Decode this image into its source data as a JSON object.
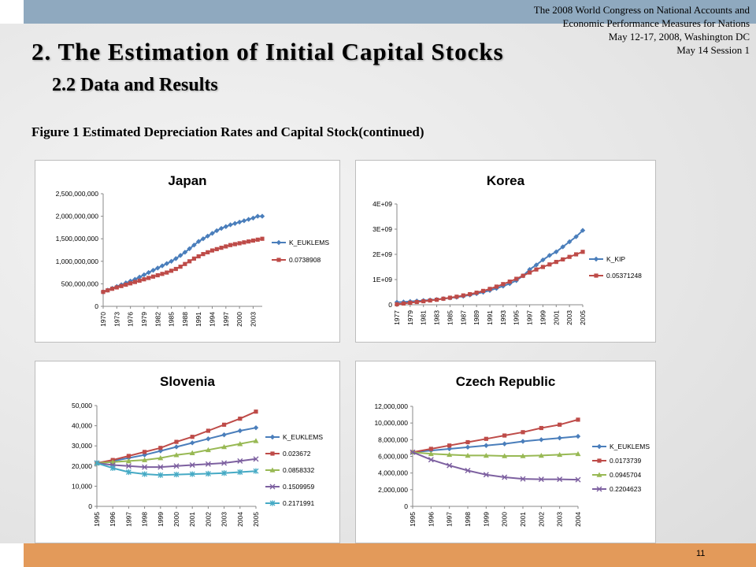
{
  "header": {
    "conference_lines": [
      "The 2008 World Congress on National Accounts and",
      "Economic Performance Measures for Nations",
      "May 12-17, 2008, Washington DC",
      "May 14 Session 1"
    ]
  },
  "title": "2. The Estimation of Initial Capital Stocks",
  "subtitle": "2.2 Data and Results",
  "figure_caption": "Figure 1 Estimated Depreciation Rates and Capital Stock(continued)",
  "page_number": "11",
  "colors": {
    "blue": "#4a7ebb",
    "red": "#be4b48",
    "green": "#98b954",
    "purple": "#7d60a0",
    "cyan": "#46aac5",
    "top_bar": "#8fa9bf",
    "bottom_bar": "#e39a5a"
  },
  "chart_data": [
    {
      "type": "line",
      "title": "Japan",
      "x": [
        1970,
        1971,
        1972,
        1973,
        1974,
        1975,
        1976,
        1977,
        1978,
        1979,
        1980,
        1981,
        1982,
        1983,
        1984,
        1985,
        1986,
        1987,
        1988,
        1989,
        1990,
        1991,
        1992,
        1993,
        1994,
        1995,
        1996,
        1997,
        1998,
        1999,
        2000,
        2001,
        2002,
        2003,
        2004,
        2005
      ],
      "x_tick_labels": [
        "1970",
        "1973",
        "1976",
        "1979",
        "1982",
        "1985",
        "1988",
        "1991",
        "1994",
        "1997",
        "2000",
        "2003"
      ],
      "ylim": [
        0,
        2500000000
      ],
      "y_ticks": [
        0,
        500000000,
        1000000000,
        1500000000,
        2000000000,
        2500000000
      ],
      "y_tick_labels": [
        "0",
        "500,000,000",
        "1,000,000,000",
        "1,500,000,000",
        "2,000,000,000",
        "2,500,000,000"
      ],
      "legend_position": "right",
      "series": [
        {
          "name": "K_EUKLEMS",
          "color": "blue",
          "marker": "diamond",
          "values": [
            320000000,
            360000000,
            400000000,
            440000000,
            480000000,
            520000000,
            560000000,
            600000000,
            650000000,
            700000000,
            750000000,
            800000000,
            850000000,
            900000000,
            950000000,
            1000000000,
            1060000000,
            1130000000,
            1200000000,
            1280000000,
            1360000000,
            1440000000,
            1500000000,
            1560000000,
            1620000000,
            1680000000,
            1730000000,
            1770000000,
            1810000000,
            1840000000,
            1870000000,
            1900000000,
            1930000000,
            1960000000,
            2000000000,
            2000000000
          ]
        },
        {
          "name": "0.0738908",
          "color": "red",
          "marker": "square",
          "values": [
            320000000,
            355000000,
            390000000,
            420000000,
            450000000,
            480000000,
            510000000,
            540000000,
            570000000,
            600000000,
            630000000,
            660000000,
            690000000,
            720000000,
            750000000,
            790000000,
            830000000,
            880000000,
            940000000,
            1000000000,
            1060000000,
            1110000000,
            1160000000,
            1200000000,
            1240000000,
            1270000000,
            1300000000,
            1330000000,
            1360000000,
            1380000000,
            1400000000,
            1420000000,
            1440000000,
            1460000000,
            1480000000,
            1500000000
          ]
        }
      ]
    },
    {
      "type": "line",
      "title": "Korea",
      "x": [
        1977,
        1978,
        1979,
        1980,
        1981,
        1982,
        1983,
        1984,
        1985,
        1986,
        1987,
        1988,
        1989,
        1990,
        1991,
        1992,
        1993,
        1994,
        1995,
        1996,
        1997,
        1998,
        1999,
        2000,
        2001,
        2002,
        2003,
        2004,
        2005
      ],
      "x_tick_labels": [
        "1977",
        "1979",
        "1981",
        "1983",
        "1985",
        "1987",
        "1989",
        "1991",
        "1993",
        "1995",
        "1997",
        "1999",
        "2001",
        "2003",
        "2005"
      ],
      "ylim": [
        0,
        4000000000
      ],
      "y_ticks": [
        0,
        1000000000,
        2000000000,
        3000000000,
        4000000000
      ],
      "y_tick_labels": [
        "0",
        "1E+09",
        "2E+09",
        "3E+09",
        "4E+09"
      ],
      "legend_position": "right",
      "series": [
        {
          "name": "K_KIP",
          "color": "blue",
          "marker": "diamond",
          "values": [
            100000000,
            110000000,
            130000000,
            150000000,
            170000000,
            190000000,
            210000000,
            240000000,
            270000000,
            300000000,
            340000000,
            390000000,
            440000000,
            500000000,
            570000000,
            650000000,
            740000000,
            840000000,
            960000000,
            1150000000,
            1400000000,
            1580000000,
            1780000000,
            1960000000,
            2100000000,
            2300000000,
            2500000000,
            2700000000,
            2950000000
          ]
        },
        {
          "name": "0.05371248",
          "color": "red",
          "marker": "square",
          "values": [
            20000000,
            50000000,
            80000000,
            110000000,
            140000000,
            170000000,
            200000000,
            240000000,
            280000000,
            320000000,
            370000000,
            420000000,
            480000000,
            550000000,
            630000000,
            720000000,
            820000000,
            920000000,
            1030000000,
            1150000000,
            1280000000,
            1400000000,
            1500000000,
            1600000000,
            1700000000,
            1800000000,
            1900000000,
            2000000000,
            2100000000
          ]
        }
      ]
    },
    {
      "type": "line",
      "title": "Slovenia",
      "x": [
        1995,
        1996,
        1997,
        1998,
        1999,
        2000,
        2001,
        2002,
        2003,
        2004,
        2005
      ],
      "x_tick_labels": [
        "1995",
        "1996",
        "1997",
        "1998",
        "1999",
        "2000",
        "2001",
        "2002",
        "2003",
        "2004",
        "2005"
      ],
      "ylim": [
        0,
        50000
      ],
      "y_ticks": [
        0,
        10000,
        20000,
        30000,
        40000,
        50000
      ],
      "y_tick_labels": [
        "0",
        "10,000",
        "20,000",
        "30,000",
        "40,000",
        "50,000"
      ],
      "legend_position": "right",
      "series": [
        {
          "name": "K_EUKLEMS",
          "color": "blue",
          "marker": "diamond",
          "values": [
            21500,
            22500,
            24000,
            25500,
            27500,
            29500,
            31500,
            33500,
            35500,
            37500,
            39000
          ]
        },
        {
          "name": "0.023672",
          "color": "red",
          "marker": "square",
          "values": [
            21500,
            23000,
            25000,
            27000,
            29000,
            32000,
            34500,
            37500,
            40500,
            43500,
            47000
          ]
        },
        {
          "name": "0.0858332",
          "color": "green",
          "marker": "triangle",
          "values": [
            21500,
            22000,
            22500,
            23000,
            24000,
            25500,
            26500,
            28000,
            29500,
            31000,
            32500
          ]
        },
        {
          "name": "0.1509959",
          "color": "purple",
          "marker": "x",
          "values": [
            21500,
            20500,
            20000,
            19500,
            19500,
            20000,
            20500,
            21000,
            21500,
            22500,
            23500
          ]
        },
        {
          "name": "0.2171991",
          "color": "cyan",
          "marker": "star",
          "values": [
            21500,
            19000,
            17000,
            16000,
            15500,
            15800,
            16000,
            16200,
            16500,
            17000,
            17500
          ]
        }
      ]
    },
    {
      "type": "line",
      "title": "Czech Republic",
      "x": [
        1995,
        1996,
        1997,
        1998,
        1999,
        2000,
        2001,
        2002,
        2003,
        2004
      ],
      "x_tick_labels": [
        "1995",
        "1996",
        "1997",
        "1998",
        "1999",
        "2000",
        "2001",
        "2002",
        "2003",
        "2004"
      ],
      "ylim": [
        0,
        12000000
      ],
      "y_ticks": [
        0,
        2000000,
        4000000,
        6000000,
        8000000,
        10000000,
        12000000
      ],
      "y_tick_labels": [
        "0",
        "2,000,000",
        "4,000,000",
        "6,000,000",
        "8,000,000",
        "10,000,000",
        "12,000,000"
      ],
      "legend_position": "right",
      "series": [
        {
          "name": "K_EUKLEMS",
          "color": "blue",
          "marker": "diamond",
          "values": [
            6500000,
            6700000,
            6900000,
            7100000,
            7300000,
            7500000,
            7800000,
            8000000,
            8200000,
            8400000
          ]
        },
        {
          "name": "0.0173739",
          "color": "red",
          "marker": "square",
          "values": [
            6500000,
            6900000,
            7300000,
            7700000,
            8100000,
            8500000,
            8900000,
            9400000,
            9800000,
            10400000
          ]
        },
        {
          "name": "0.0945704",
          "color": "green",
          "marker": "triangle",
          "values": [
            6500000,
            6300000,
            6200000,
            6100000,
            6100000,
            6050000,
            6050000,
            6100000,
            6200000,
            6300000
          ]
        },
        {
          "name": "0.2204623",
          "color": "purple",
          "marker": "x",
          "values": [
            6500000,
            5600000,
            4900000,
            4300000,
            3800000,
            3500000,
            3300000,
            3250000,
            3250000,
            3200000
          ]
        }
      ]
    }
  ]
}
